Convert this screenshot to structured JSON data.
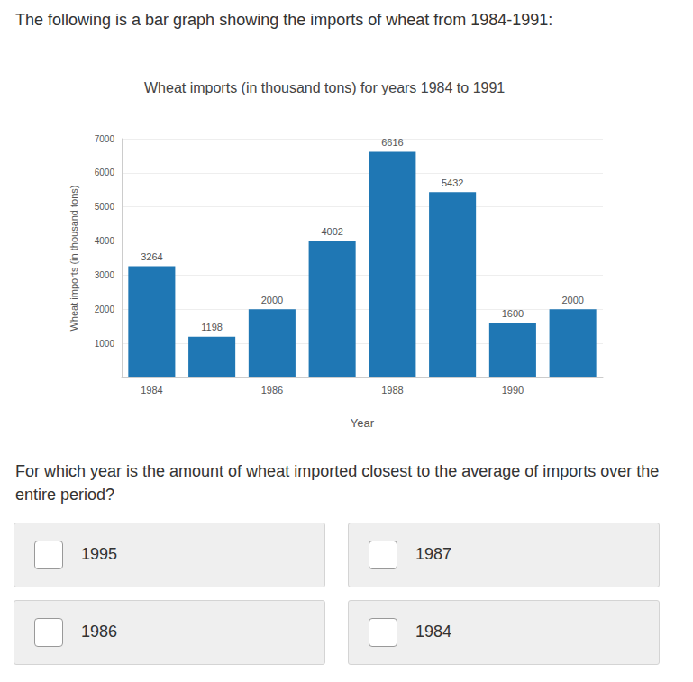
{
  "intro_text": "The following is a bar graph showing the imports of wheat from 1984-1991:",
  "chart_data": {
    "type": "bar",
    "title": "Wheat imports (in thousand tons) for years 1984 to 1991",
    "x_label": "Year",
    "y_label": "Wheat imports (in thousand tons)",
    "categories": [
      "1984",
      null,
      "1986",
      null,
      "1988",
      null,
      "1990",
      null
    ],
    "values": [
      3264,
      1198,
      2000,
      4002,
      6616,
      5432,
      1600,
      2000
    ],
    "color": "#1f77b4",
    "ylim": [
      0,
      7000
    ],
    "yticks": [
      1000,
      2000,
      3000,
      4000,
      5000,
      6000,
      7000
    ],
    "grid": true,
    "data_labels": true
  },
  "question": "For which year is the amount of wheat imported closest to the average of imports over the entire period?",
  "options": [
    "1995",
    "1987",
    "1986",
    "1984"
  ]
}
